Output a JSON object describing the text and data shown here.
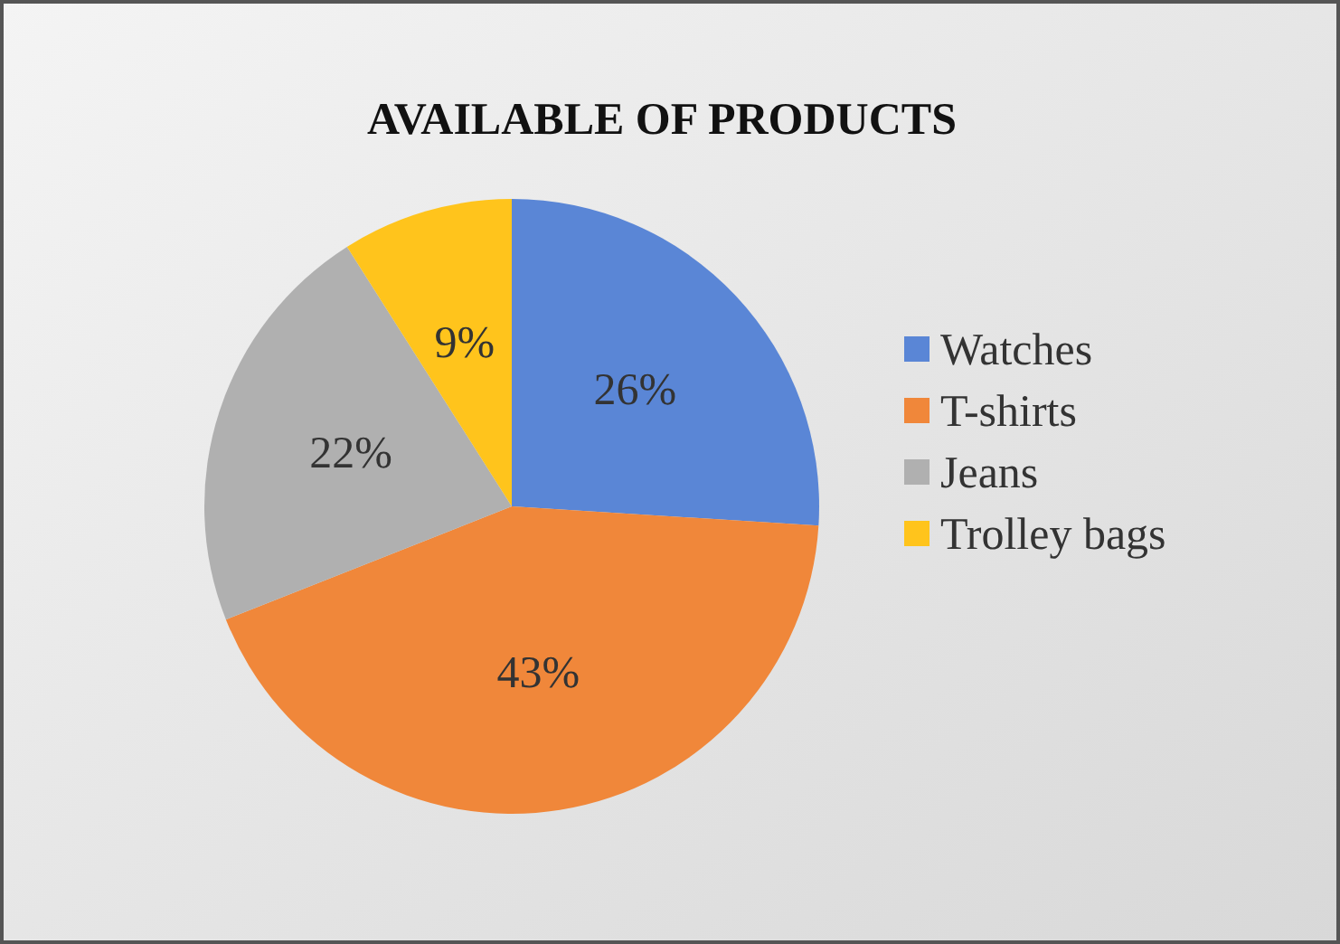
{
  "chart_data": {
    "type": "pie",
    "title": "AVAILABLE OF PRODUCTS",
    "categories": [
      "Watches",
      "T-shirts",
      "Jeans",
      "Trolley bags"
    ],
    "values": [
      26,
      43,
      22,
      9
    ],
    "colors": [
      "#5a86d6",
      "#f0873a",
      "#b0b0b0",
      "#ffc41c"
    ],
    "value_labels": [
      "26%",
      "43%",
      "22%",
      "9%"
    ],
    "legend": "right"
  }
}
